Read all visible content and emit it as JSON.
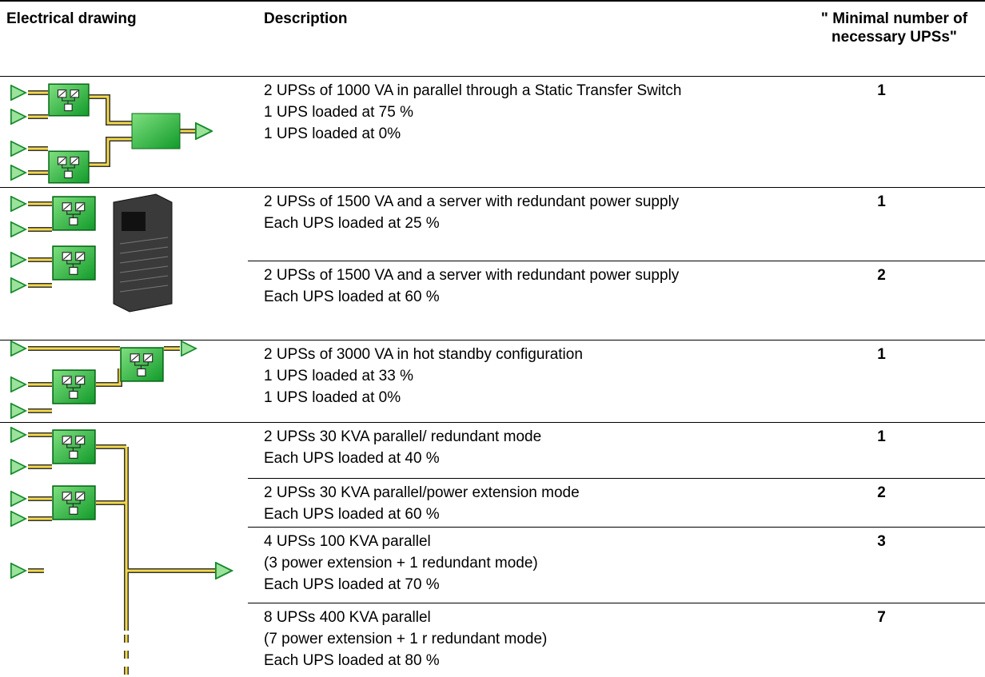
{
  "table": {
    "header": [
      "Electrical drawing",
      "Description",
      "\" Minimal number of necessary UPSs\""
    ],
    "groups": [
      {
        "rows": [
          {
            "description": [
              "2 UPSs of 1000 VA in parallel through a Static Transfer Switch",
              "1 UPS loaded at 75 %",
              "1 UPS loaded at 0%"
            ],
            "minimum": 1
          }
        ]
      },
      {
        "rows": [
          {
            "description": [
              "2 UPSs of 1500 VA and a server with redundant power supply",
              "Each UPS loaded at 25 %"
            ],
            "minimum": 1
          },
          {
            "description": [
              "2 UPSs of 1500 VA and a server with redundant power supply",
              "Each UPS loaded at 60 %"
            ],
            "minimum": 2
          }
        ]
      },
      {
        "rows": [
          {
            "description": [
              "2 UPSs of 3000 VA in hot standby configuration",
              "1 UPS loaded at 33 %",
              "1 UPS loaded at 0%"
            ],
            "minimum": 1
          }
        ]
      },
      {
        "rows": [
          {
            "description": [
              "2 UPSs 30 KVA parallel/ redundant mode",
              "Each UPS loaded at 40 %"
            ],
            "minimum": 1
          },
          {
            "description": [
              "2 UPSs 30 KVA parallel/power extension mode",
              "Each UPS loaded at 60 %"
            ],
            "minimum": 2
          },
          {
            "description": [
              "4 UPSs 100 KVA parallel",
              "(3 power extension + 1 redundant mode)",
              "Each UPS loaded at 70 %"
            ],
            "minimum": 3
          },
          {
            "description": [
              "8 UPSs 400 KVA parallel",
              "(7 power extension + 1 r redundant mode)",
              "Each UPS loaded at 80 %"
            ],
            "minimum": 7
          }
        ]
      }
    ]
  }
}
